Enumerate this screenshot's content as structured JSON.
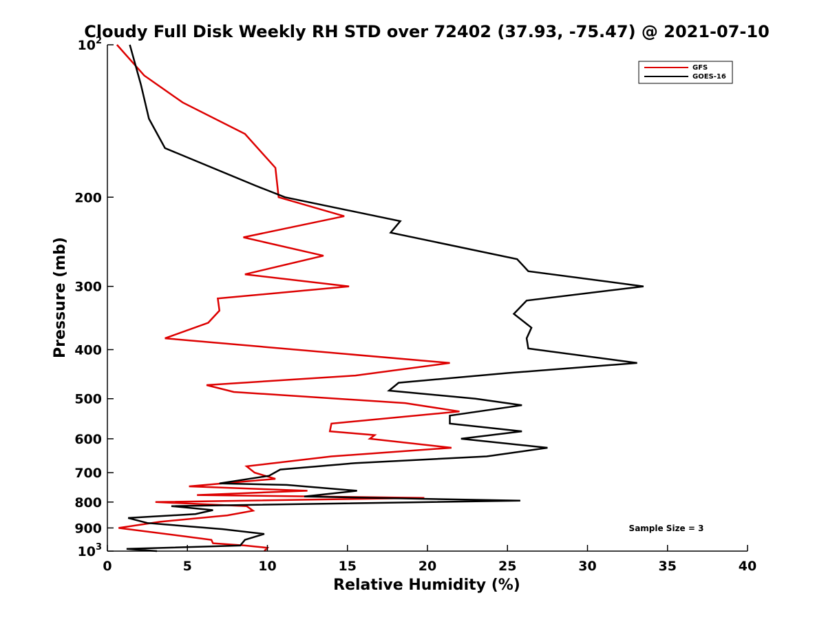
{
  "chart_data": {
    "type": "line",
    "title": "Cloudy Full Disk Weekly RH STD over 72402 (37.93, -75.47) @ 2021-07-10",
    "xlabel": "Relative Humidity (%)",
    "ylabel": "Pressure (mb)",
    "xlim": [
      0,
      40
    ],
    "ylim": [
      100,
      1000
    ],
    "y_scale": "log",
    "y_reversed": true,
    "x_ticks": [
      "0",
      "5",
      "10",
      "15",
      "20",
      "25",
      "30",
      "35",
      "40"
    ],
    "y_ticks": [
      {
        "value": 100,
        "base": "10",
        "exp": "2"
      },
      {
        "value": 200,
        "label": "200"
      },
      {
        "value": 300,
        "label": "300"
      },
      {
        "value": 400,
        "label": "400"
      },
      {
        "value": 500,
        "label": "500"
      },
      {
        "value": 600,
        "label": "600"
      },
      {
        "value": 700,
        "label": "700"
      },
      {
        "value": 800,
        "label": "800"
      },
      {
        "value": 900,
        "label": "900"
      },
      {
        "value": 1000,
        "base": "10",
        "exp": "3"
      }
    ],
    "grid": false,
    "legend_position": "top-right",
    "annotation": "Sample Size = 3",
    "series": [
      {
        "name": "GFS",
        "color": "#dd0000",
        "points": [
          [
            0.6,
            100
          ],
          [
            2.3,
            115
          ],
          [
            4.7,
            130
          ],
          [
            8.6,
            150
          ],
          [
            10.5,
            175
          ],
          [
            10.7,
            200
          ],
          [
            14.8,
            218
          ],
          [
            8.5,
            240
          ],
          [
            13.5,
            261
          ],
          [
            8.6,
            284
          ],
          [
            15.1,
            300
          ],
          [
            6.9,
            317
          ],
          [
            7.0,
            335
          ],
          [
            6.3,
            354
          ],
          [
            3.6,
            380
          ],
          [
            21.4,
            425
          ],
          [
            15.5,
            450
          ],
          [
            6.2,
            470
          ],
          [
            7.9,
            485
          ],
          [
            18.6,
            510
          ],
          [
            22.0,
            530
          ],
          [
            14.0,
            560
          ],
          [
            13.9,
            580
          ],
          [
            16.7,
            590
          ],
          [
            16.4,
            600
          ],
          [
            21.5,
            625
          ],
          [
            14.0,
            650
          ],
          [
            8.7,
            680
          ],
          [
            9.2,
            700
          ],
          [
            10.5,
            720
          ],
          [
            5.1,
            745
          ],
          [
            12.5,
            760
          ],
          [
            5.6,
            775
          ],
          [
            19.8,
            785
          ],
          [
            3.0,
            800
          ],
          [
            8.7,
            815
          ],
          [
            9.1,
            832
          ],
          [
            7.5,
            850
          ],
          [
            3.3,
            875
          ],
          [
            0.7,
            900
          ],
          [
            4.8,
            935
          ],
          [
            6.5,
            950
          ],
          [
            6.6,
            965
          ],
          [
            8.6,
            975
          ],
          [
            10.0,
            985
          ],
          [
            9.8,
            1000
          ]
        ]
      },
      {
        "name": "GOES-16",
        "color": "#000000",
        "points": [
          [
            1.4,
            100
          ],
          [
            2.1,
            120
          ],
          [
            2.6,
            140
          ],
          [
            3.6,
            160
          ],
          [
            9.3,
            190
          ],
          [
            11.1,
            200
          ],
          [
            18.3,
            223
          ],
          [
            17.7,
            235
          ],
          [
            25.6,
            265
          ],
          [
            26.3,
            280
          ],
          [
            33.5,
            300
          ],
          [
            26.2,
            320
          ],
          [
            25.4,
            340
          ],
          [
            26.5,
            362
          ],
          [
            26.2,
            380
          ],
          [
            26.3,
            398
          ],
          [
            33.1,
            425
          ],
          [
            25.0,
            445
          ],
          [
            18.2,
            465
          ],
          [
            17.6,
            482
          ],
          [
            23.0,
            500
          ],
          [
            25.9,
            515
          ],
          [
            21.4,
            540
          ],
          [
            21.4,
            560
          ],
          [
            25.9,
            580
          ],
          [
            22.1,
            600
          ],
          [
            27.5,
            625
          ],
          [
            23.7,
            650
          ],
          [
            15.5,
            670
          ],
          [
            10.8,
            690
          ],
          [
            10.1,
            710
          ],
          [
            7.0,
            735
          ],
          [
            11.2,
            740
          ],
          [
            15.6,
            760
          ],
          [
            12.3,
            780
          ],
          [
            25.8,
            795
          ],
          [
            4.0,
            815
          ],
          [
            6.6,
            830
          ],
          [
            5.5,
            845
          ],
          [
            1.3,
            860
          ],
          [
            2.5,
            880
          ],
          [
            7.2,
            905
          ],
          [
            9.8,
            925
          ],
          [
            8.6,
            950
          ],
          [
            8.3,
            975
          ],
          [
            1.2,
            990
          ],
          [
            3.1,
            1000
          ]
        ]
      }
    ]
  }
}
